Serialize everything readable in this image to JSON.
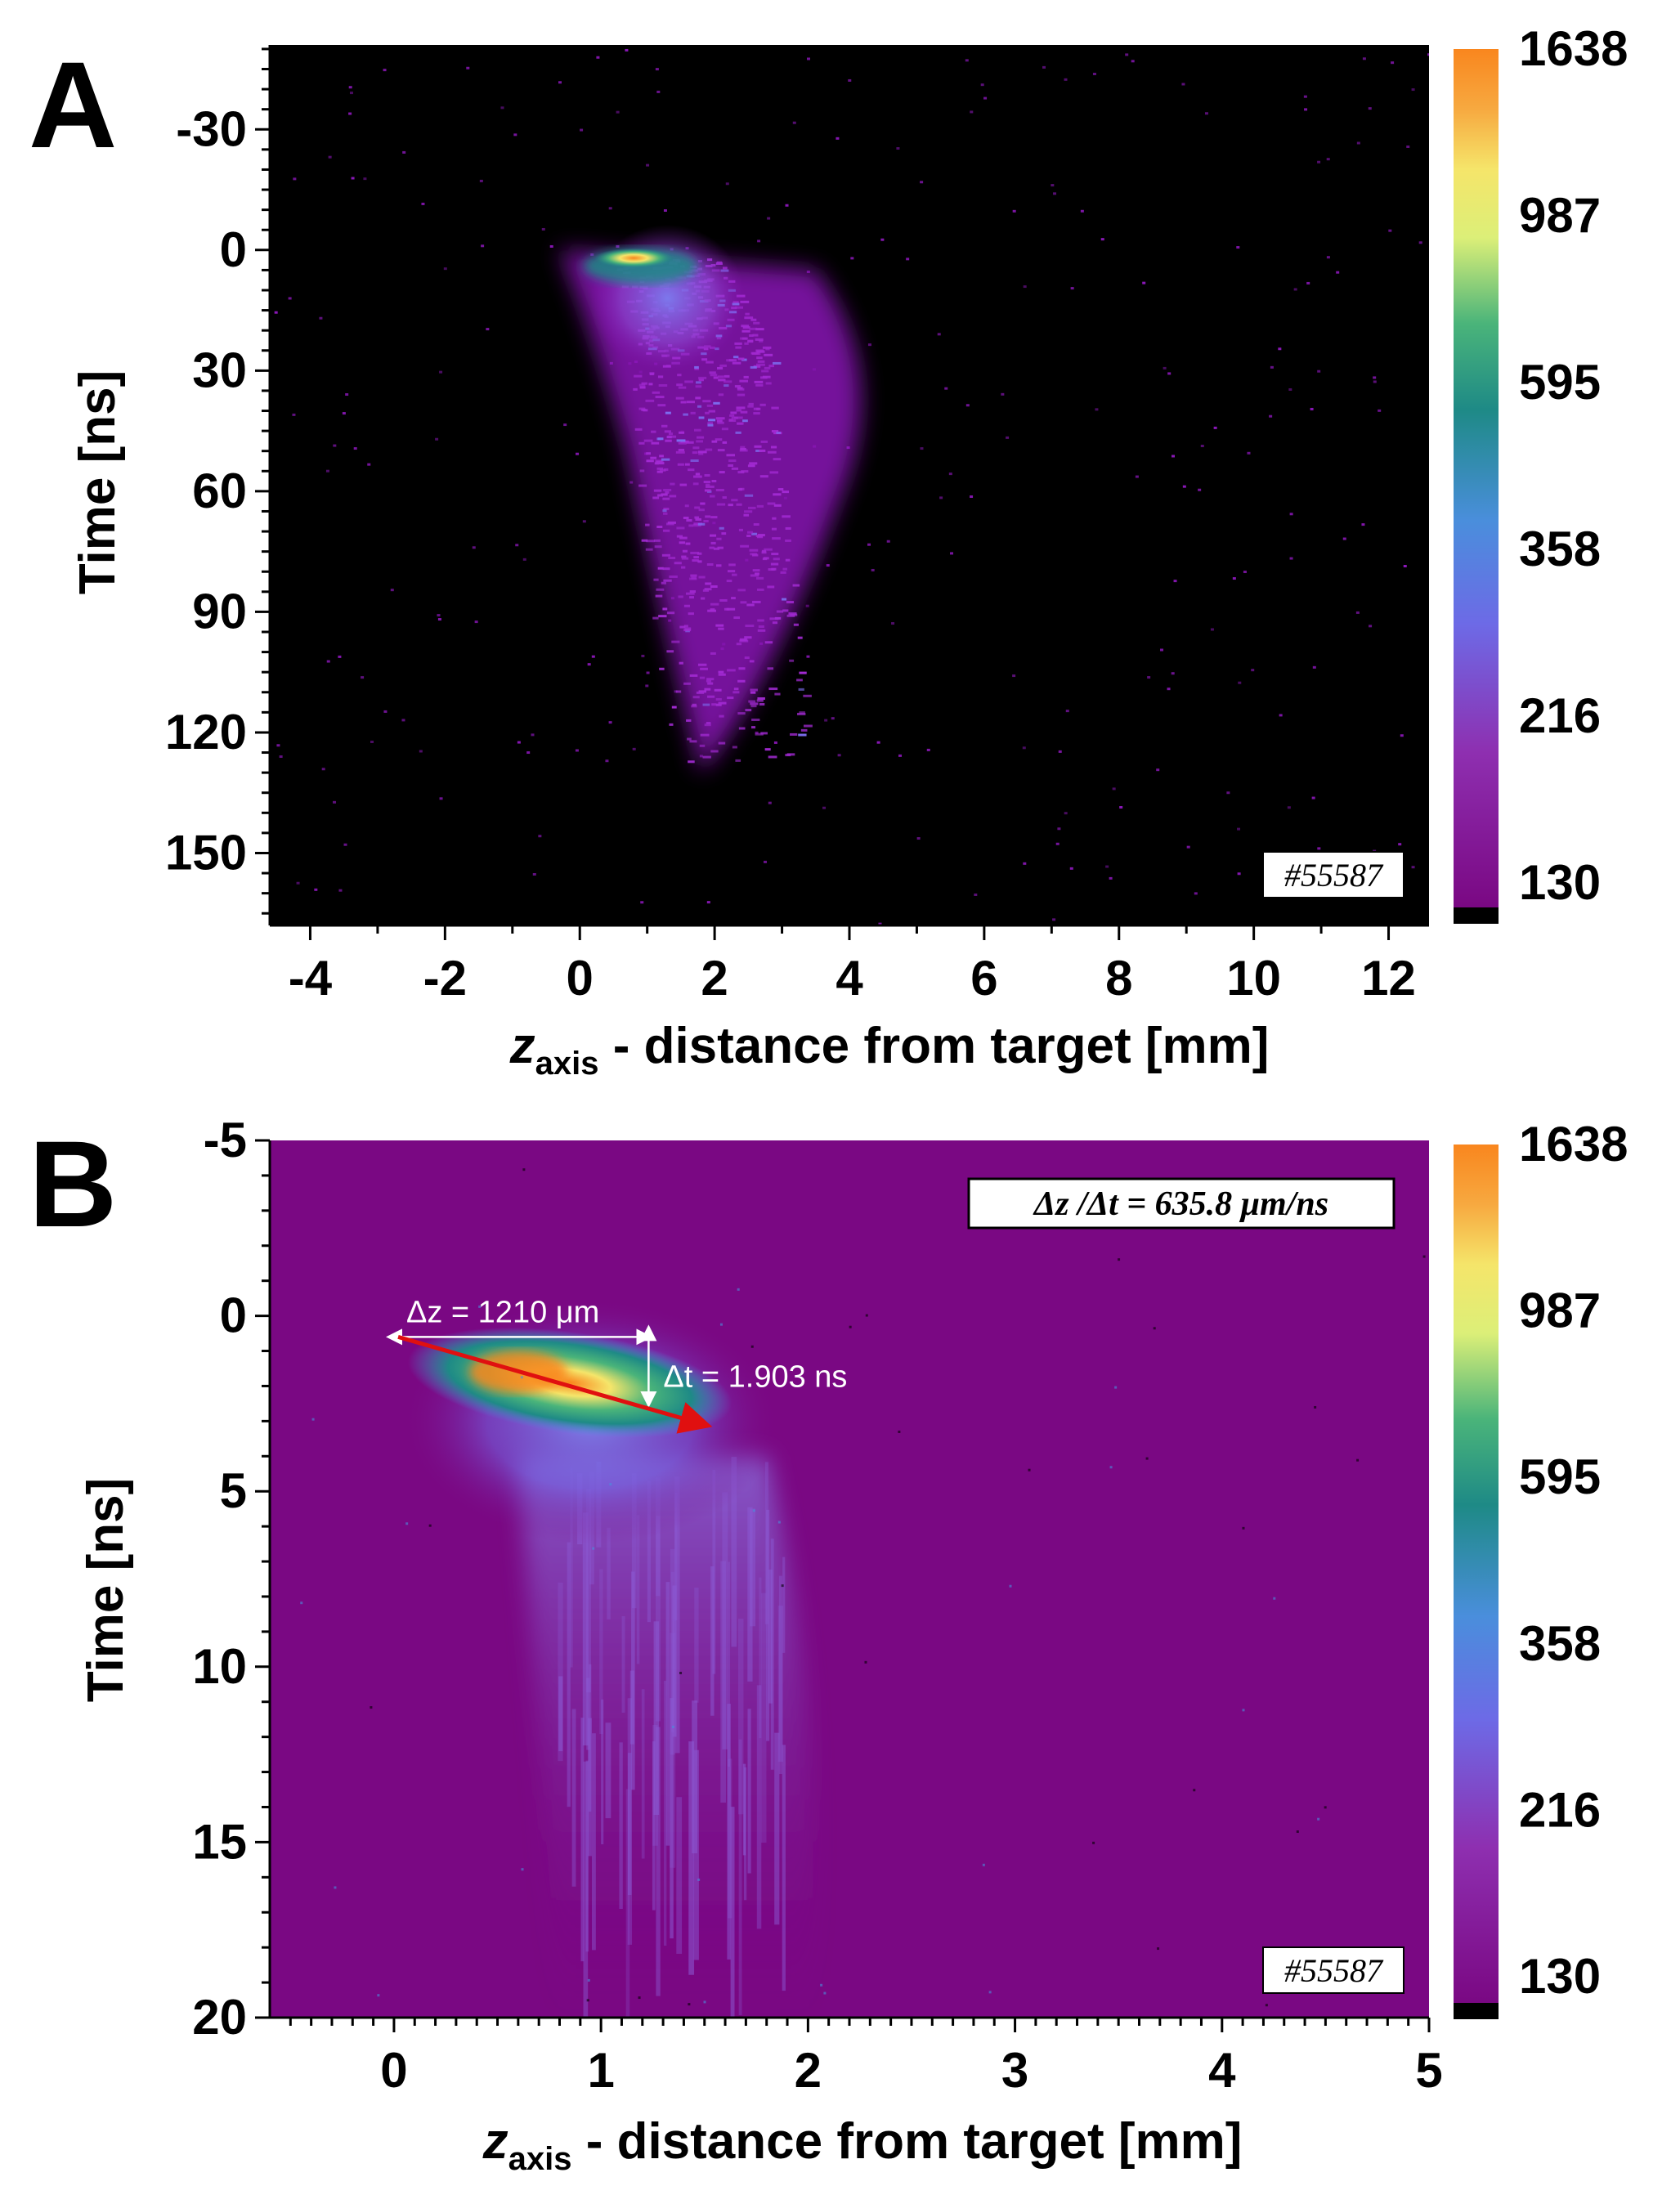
{
  "chart_data": [
    {
      "type": "heatmap",
      "panel_label": "A",
      "xlabel": "z",
      "xlabel_sub": "axis",
      "xlabel_rest": " - distance from target [mm]",
      "ylabel": "Time [ns]",
      "xlim": [
        -4.6,
        12.6
      ],
      "ylim": [
        -51,
        168
      ],
      "x_ticks": [
        -4,
        -2,
        0,
        2,
        4,
        6,
        8,
        10,
        12
      ],
      "y_ticks": [
        -30,
        0,
        30,
        60,
        90,
        120,
        150
      ],
      "shot_label": "#55587",
      "background": "#000000",
      "colorbar": {
        "ticks": [
          "1638",
          "987",
          "595",
          "358",
          "216",
          "130"
        ],
        "min": 130,
        "max": 1638
      },
      "signal": {
        "peak_z": 0.8,
        "peak_t": 2,
        "peak_value": 1300
      }
    },
    {
      "type": "heatmap",
      "panel_label": "B",
      "xlabel": "z",
      "xlabel_sub": "axis",
      "xlabel_rest": " - distance from target [mm]",
      "ylabel": "Time [ns]",
      "xlim": [
        -0.6,
        5.0
      ],
      "ylim": [
        -5,
        20
      ],
      "x_ticks": [
        0,
        1,
        2,
        3,
        4,
        5
      ],
      "y_ticks": [
        -5,
        0,
        5,
        10,
        15,
        20
      ],
      "shot_label": "#55587",
      "annotation": "Δz /Δt = 635.8 μm/ns",
      "delta_z_label": "Δz = 1210 μm",
      "delta_t_label": "Δt = 1.903 ns",
      "arrow": {
        "from": [
          0.02,
          0.6
        ],
        "to": [
          1.5,
          3.1
        ]
      },
      "background": "#7a0883",
      "colorbar": {
        "ticks": [
          "1638",
          "987",
          "595",
          "358",
          "216",
          "130"
        ],
        "min": 130,
        "max": 1638
      },
      "signal": {
        "peak_z": 0.6,
        "peak_t": 1.6,
        "peak_value": 1300
      }
    }
  ]
}
